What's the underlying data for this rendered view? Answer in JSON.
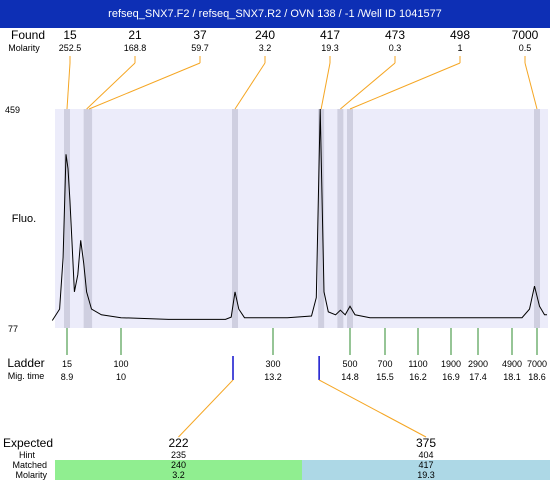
{
  "header": {
    "title": "refseq_SNX7.F2 / refseq_SNX7.R2 / OVN 138 / -1  /Well ID 1041577"
  },
  "labels": {
    "found": "Found",
    "molarity": "Molarity",
    "fluo": "Fluo.",
    "ladder": "Ladder",
    "mig_time": "Mig. time",
    "expected": "Expected",
    "hint": "Hint",
    "matched": "Matched",
    "molarity_bottom": "Molarity"
  },
  "chart_data": {
    "type": "line",
    "title": "",
    "ylabel": "Fluo.",
    "ylim": [
      77,
      459
    ],
    "y_ticks": [
      "459",
      "77"
    ],
    "found_peaks": [
      {
        "size": "15",
        "molarity": "252.5",
        "mig": 8.9
      },
      {
        "size": "21",
        "molarity": "168.8",
        "mig": 9.3
      },
      {
        "size": "37",
        "molarity": "59.7",
        "mig": 9.35
      },
      {
        "size": "240",
        "molarity": "3.2",
        "mig": 12.4
      },
      {
        "size": "417",
        "molarity": "19.3",
        "mig": 14.2
      },
      {
        "size": "473",
        "molarity": "0.3",
        "mig": 14.6
      },
      {
        "size": "498",
        "molarity": "1",
        "mig": 14.8
      },
      {
        "size": "7000",
        "molarity": "0.5",
        "mig": 18.6
      }
    ],
    "ladder": [
      {
        "size": "15",
        "mig_time": "8.9"
      },
      {
        "size": "100",
        "mig_time": "10"
      },
      {
        "size": "300",
        "mig_time": "13.2"
      },
      {
        "size": "500",
        "mig_time": "14.8"
      },
      {
        "size": "700",
        "mig_time": "15.5"
      },
      {
        "size": "1100",
        "mig_time": "16.2"
      },
      {
        "size": "1900",
        "mig_time": "16.9"
      },
      {
        "size": "2900",
        "mig_time": "17.4"
      },
      {
        "size": "4900",
        "mig_time": "18.1"
      },
      {
        "size": "7000",
        "mig_time": "18.6"
      }
    ],
    "trace": [
      [
        8.6,
        90
      ],
      [
        8.75,
        110
      ],
      [
        8.82,
        200
      ],
      [
        8.88,
        380
      ],
      [
        8.92,
        355
      ],
      [
        8.96,
        300
      ],
      [
        9.0,
        230
      ],
      [
        9.05,
        140
      ],
      [
        9.12,
        170
      ],
      [
        9.18,
        230
      ],
      [
        9.24,
        190
      ],
      [
        9.3,
        140
      ],
      [
        9.4,
        110
      ],
      [
        9.6,
        100
      ],
      [
        10.0,
        95
      ],
      [
        11.0,
        92
      ],
      [
        12.2,
        92
      ],
      [
        12.32,
        96
      ],
      [
        12.4,
        140
      ],
      [
        12.48,
        110
      ],
      [
        12.6,
        95
      ],
      [
        13.5,
        95
      ],
      [
        14.0,
        98
      ],
      [
        14.1,
        130
      ],
      [
        14.18,
        459
      ],
      [
        14.26,
        140
      ],
      [
        14.35,
        105
      ],
      [
        14.5,
        100
      ],
      [
        14.6,
        108
      ],
      [
        14.7,
        100
      ],
      [
        14.8,
        115
      ],
      [
        14.9,
        100
      ],
      [
        15.2,
        95
      ],
      [
        16.5,
        95
      ],
      [
        18.3,
        95
      ],
      [
        18.45,
        110
      ],
      [
        18.55,
        150
      ],
      [
        18.65,
        115
      ],
      [
        18.75,
        100
      ],
      [
        18.8,
        100
      ]
    ],
    "expected": [
      {
        "expected": "222",
        "hint": "235",
        "matched": "240",
        "molarity": "3.2",
        "color": "#90ee90",
        "mig": 12.4
      },
      {
        "expected": "375",
        "hint": "404",
        "matched": "417",
        "molarity": "19.3",
        "color": "#add8e6",
        "mig": 14.2
      }
    ],
    "colors": {
      "plot_bg": "#ececfa",
      "band": "#cfcfe0",
      "found_line": "#f5a623",
      "ladder_tick": "#2e8b2e",
      "expected_tick": "#1111cc"
    }
  }
}
